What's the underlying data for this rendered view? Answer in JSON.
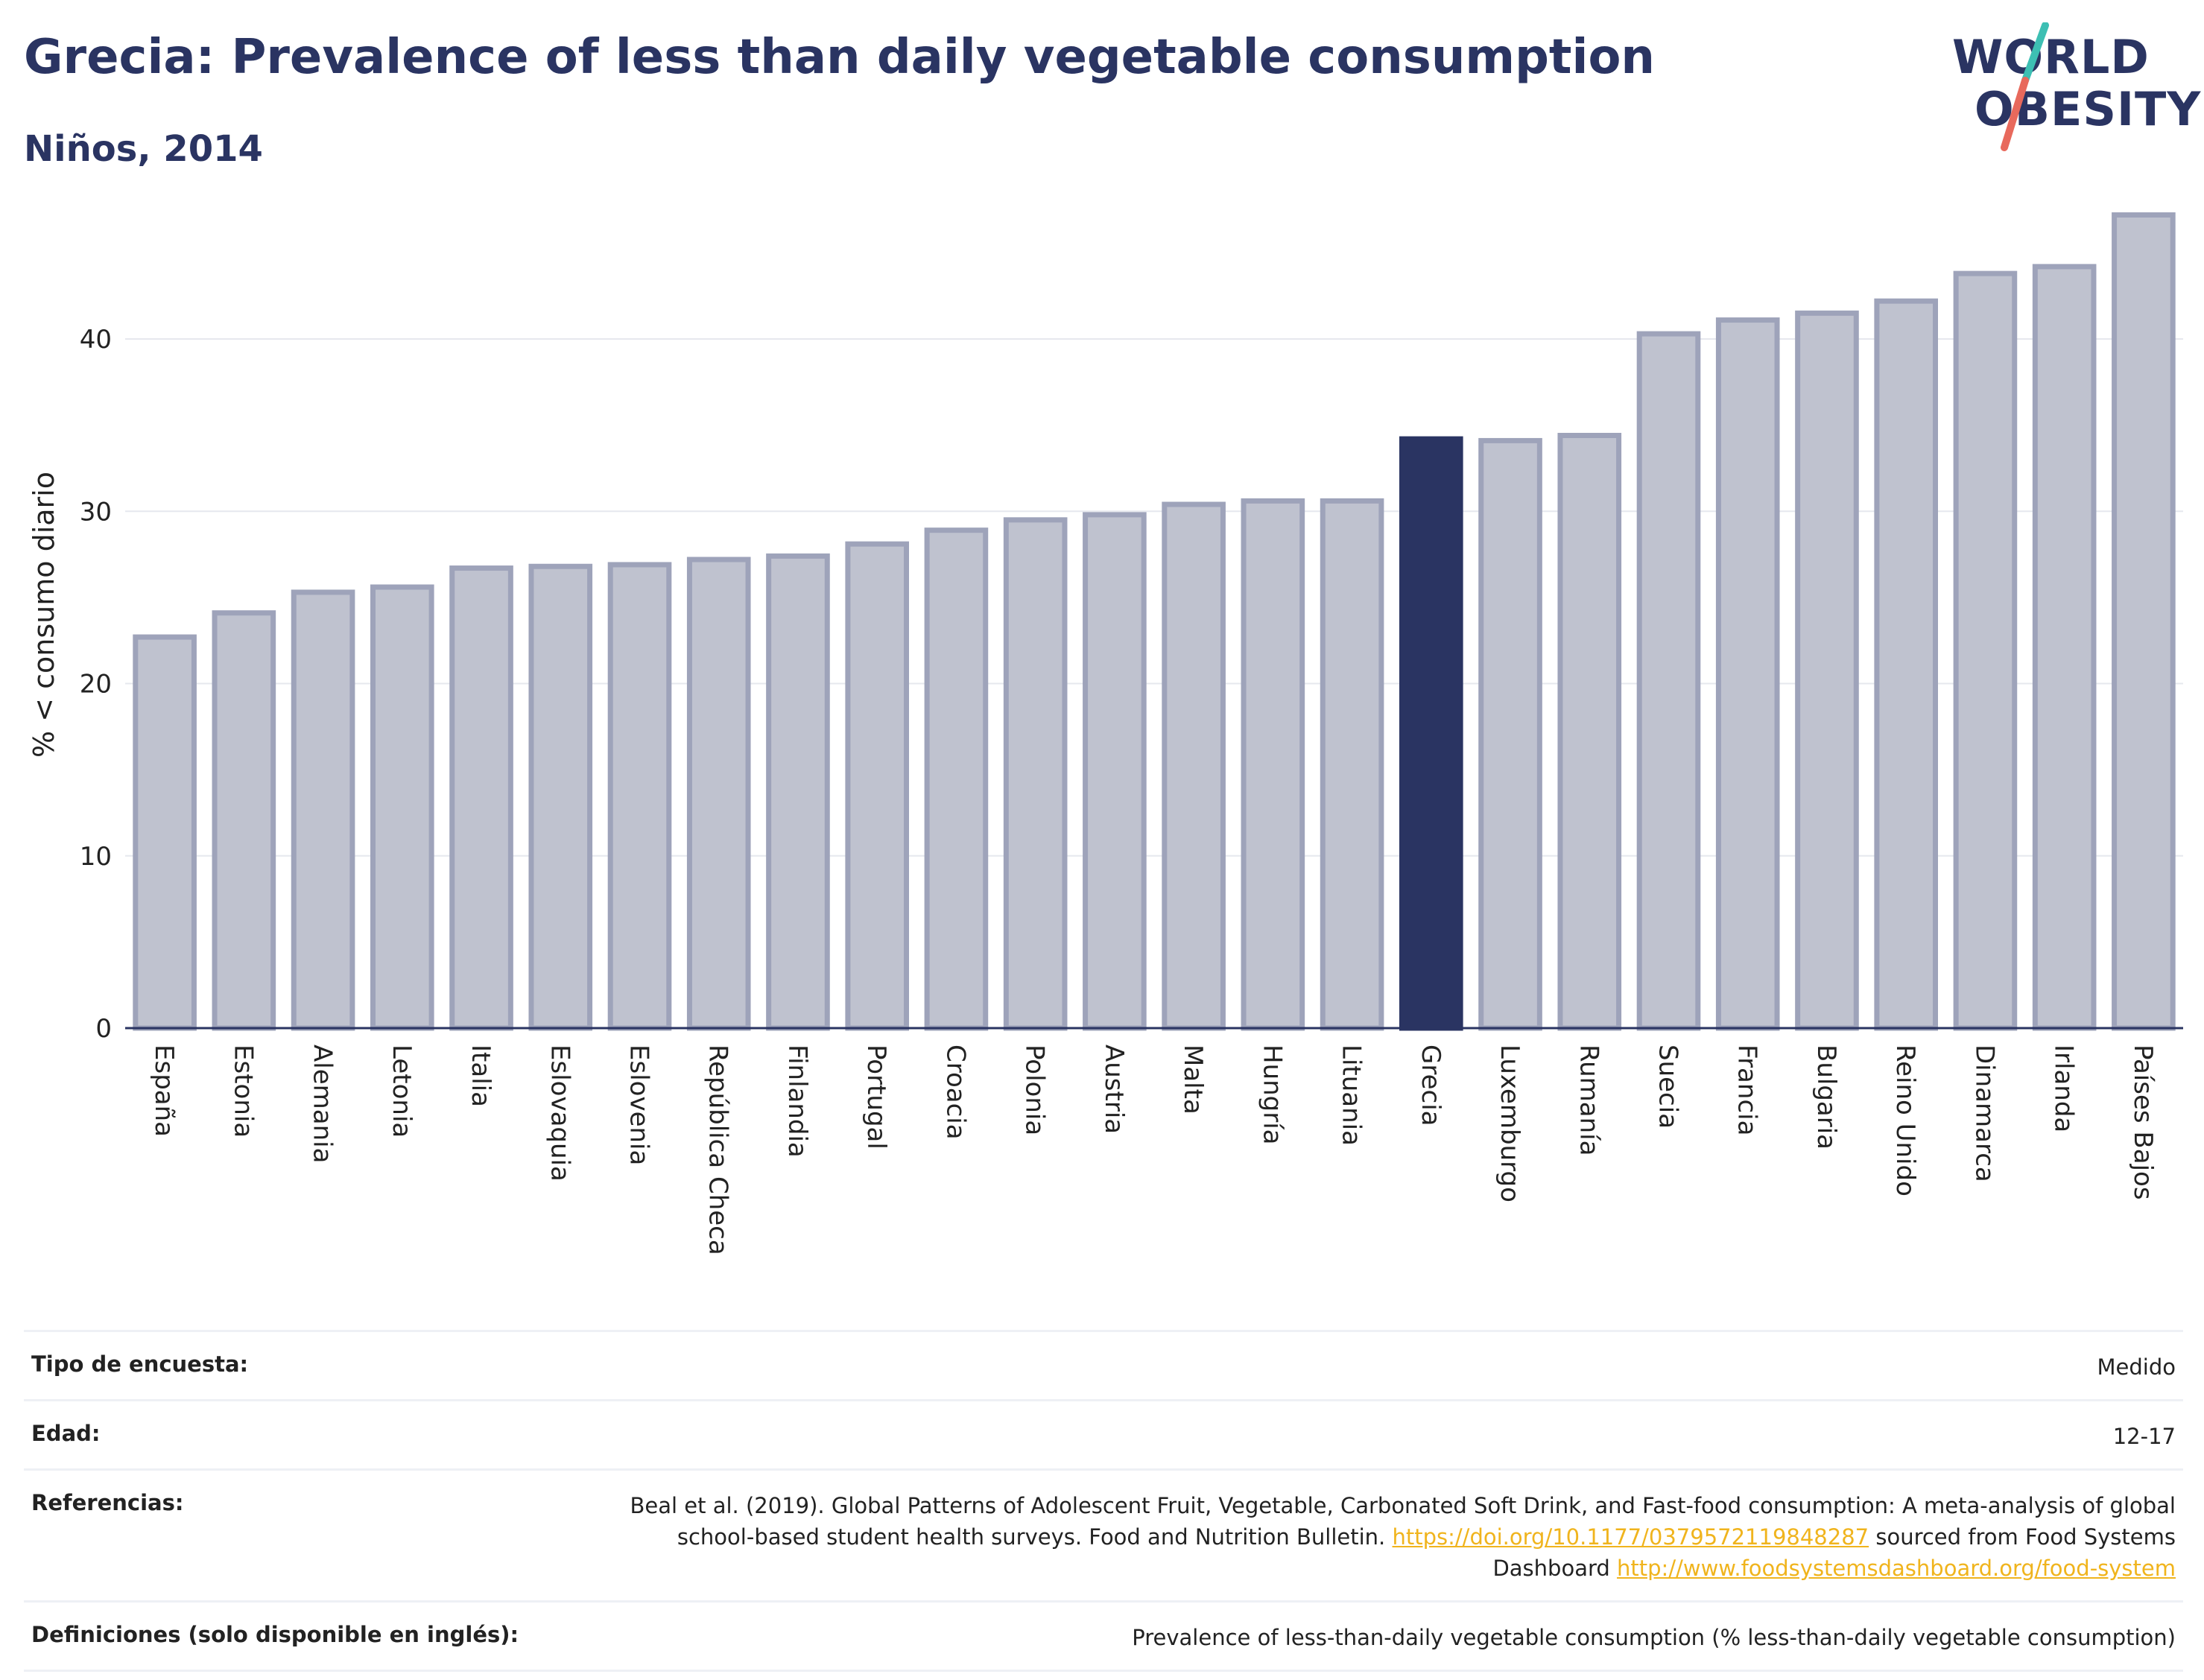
{
  "header": {
    "title": "Grecia: Prevalence of less than daily vegetable consumption",
    "subtitle": "Niños, 2014"
  },
  "logo": {
    "line1": "WORLD",
    "line2": "OBESITY",
    "colors": {
      "text": "#2a3462",
      "slash_top": "#3dbfb3",
      "slash_bottom": "#e8695c"
    }
  },
  "chart_data": {
    "type": "bar",
    "ylabel": "% < consumo diario",
    "xlabel": "",
    "ylim": [
      0,
      48
    ],
    "yticks": [
      0,
      10,
      20,
      30,
      40
    ],
    "grid": true,
    "categories": [
      "España",
      "Estonia",
      "Alemania",
      "Letonia",
      "Italia",
      "Eslovaquia",
      "Eslovenia",
      "República Checa",
      "Finlandia",
      "Portugal",
      "Croacia",
      "Polonia",
      "Austria",
      "Malta",
      "Hungría",
      "Lituania",
      "Grecia",
      "Luxemburgo",
      "Rumanía",
      "Suecia",
      "Francia",
      "Bulgaria",
      "Reino Unido",
      "Dinamarca",
      "Irlanda",
      "Países Bajos"
    ],
    "values": [
      22.7,
      24.1,
      25.3,
      25.6,
      26.7,
      26.8,
      26.9,
      27.2,
      27.4,
      28.1,
      28.9,
      29.5,
      29.8,
      30.4,
      30.6,
      30.6,
      34.2,
      34.1,
      34.4,
      40.3,
      41.1,
      41.5,
      42.2,
      43.8,
      44.2,
      47.2
    ],
    "highlight": "Grecia",
    "colors": {
      "bar": "#bfc2cf",
      "bar_edge": "#9ea3ba",
      "highlight": "#2a3462",
      "axis": "#2a3462",
      "grid": "#e6e8ee"
    }
  },
  "meta": {
    "survey_label": "Tipo de encuesta:",
    "survey_value": "Medido",
    "age_label": "Edad:",
    "age_value": "12-17",
    "refs_label": "Referencias:",
    "refs_text1": "Beal et al. (2019). Global Patterns of Adolescent Fruit, Vegetable, Carbonated Soft Drink, and Fast-food consumption: A meta-analysis of global school-based student health surveys. Food and Nutrition Bulletin. ",
    "refs_link1": "https://doi.org/10.1177/0379572119848287",
    "refs_text2": " sourced from Food Systems Dashboard ",
    "refs_link2": "http://www.foodsystemsdashboard.org/food-system",
    "defs_label": "Definiciones (solo disponible en inglés):",
    "defs_value": "Prevalence of less-than-daily vegetable consumption (% less-than-daily vegetable consumption)"
  }
}
